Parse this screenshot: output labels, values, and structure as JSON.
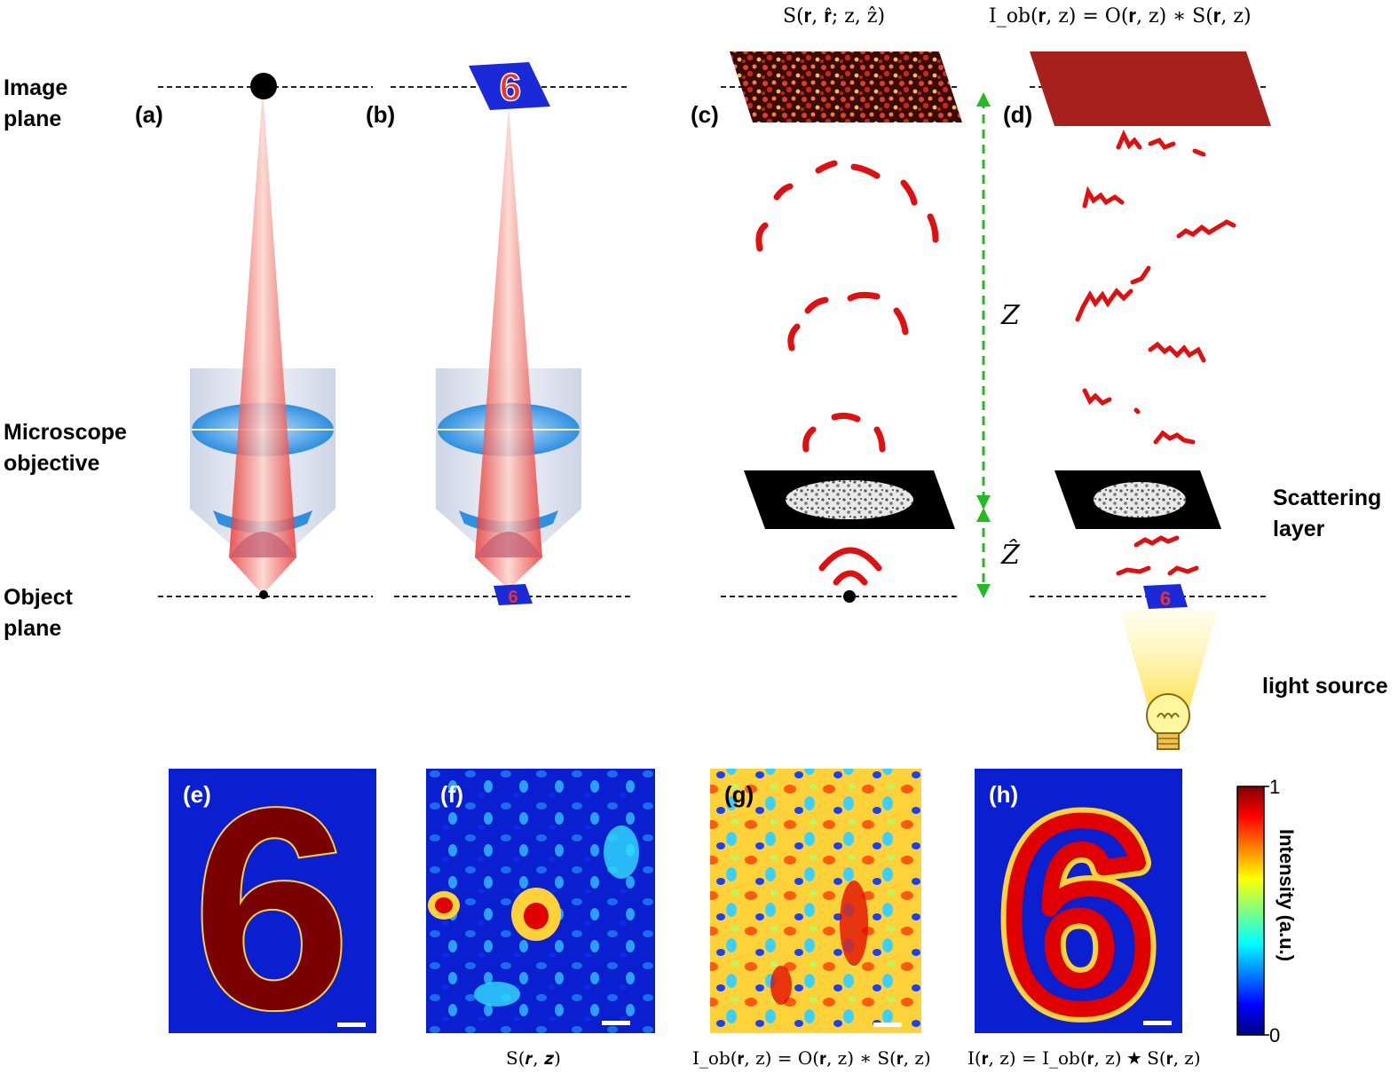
{
  "labels": {
    "image_plane": "Image\nplane",
    "microscope_objective": "Microscope\nobjective",
    "object_plane": "Object\nplane",
    "scattering_layer": "Scattering\nlayer",
    "light_source": "light source"
  },
  "panels": {
    "a": "(a)",
    "b": "(b)",
    "c": "(c)",
    "d": "(d)",
    "e": "(e)",
    "f": "(f)",
    "g": "(g)",
    "h": "(h)"
  },
  "equations": {
    "c_top": "S(𝐫, 𝐫̂; z, ẑ)",
    "d_top": "I_ob(𝐫, z) = O(𝐫, z) ∗ S(𝐫, z)",
    "f_caption": "S(𝒓, 𝒛)",
    "g_caption": "I_ob(𝐫, z) = O(𝐫, z) ∗ S(𝐫, z)",
    "h_caption": "I(𝐫, z) = I_ob(𝐫, z) ★ S(𝐫, z)"
  },
  "distances": {
    "z": "Z",
    "z_hat": "Ẑ"
  },
  "colorbar": {
    "title": "Intensity (a.u.)",
    "max": "1",
    "min": "0"
  },
  "digit": "6",
  "colors": {
    "beam": "#e8332f",
    "dash_arrow": "#22bb22",
    "wave": "#e01010",
    "panel_bg": "#0a1fd0",
    "digit_fill": "#7a0000"
  }
}
